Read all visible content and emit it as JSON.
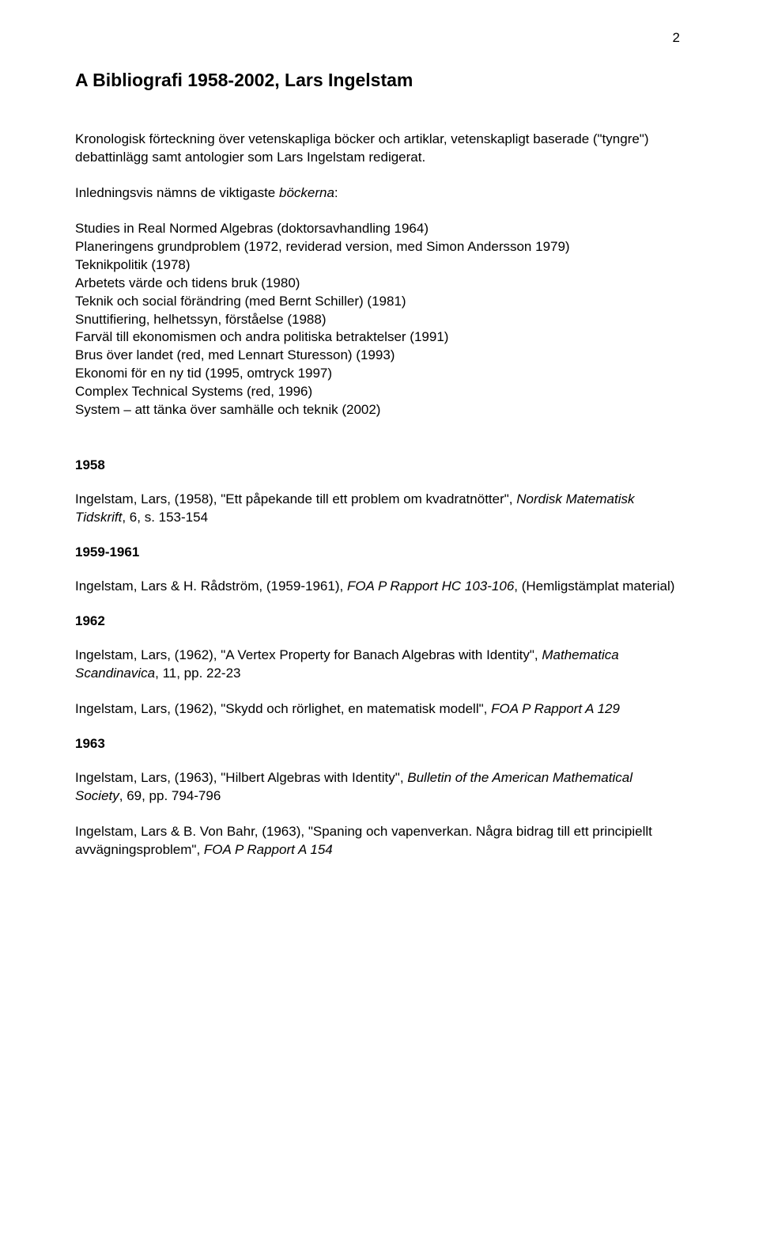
{
  "page_number": "2",
  "heading": "A Bibliografi 1958-2002, Lars Ingelstam",
  "intro_para": "Kronologisk förteckning över vetenskapliga böcker och artiklar, vetenskapligt baserade (\"tyngre\") debattinlägg samt antologier som Lars Ingelstam redigerat.",
  "intro_label_pre": "Inledningsvis nämns de viktigaste ",
  "intro_label_italic": "böckerna",
  "intro_label_post": ":",
  "books": [
    "Studies in Real Normed Algebras (doktorsavhandling 1964)",
    "Planeringens grundproblem (1972, reviderad version, med Simon Andersson 1979)",
    "Teknikpolitik (1978)",
    "Arbetets värde och tidens bruk (1980)",
    "Teknik och social förändring (med Bernt Schiller) (1981)",
    "Snuttifiering, helhetssyn, förståelse (1988)",
    "Farväl till ekonomismen och andra politiska betraktelser (1991)",
    "Brus över landet (red, med Lennart Sturesson) (1993)",
    "Ekonomi för en ny tid (1995, omtryck 1997)",
    "Complex Technical Systems (red, 1996)",
    "System – att tänka över samhälle och teknik (2002)"
  ],
  "sections": [
    {
      "year": "1958",
      "entries": [
        {
          "segments": [
            {
              "t": "Ingelstam, Lars, (1958), \"Ett påpekande till ett problem om kvadratnötter\", ",
              "i": false
            },
            {
              "t": "Nordisk Matematisk Tidskrift",
              "i": true
            },
            {
              "t": ", 6, s. 153-154",
              "i": false
            }
          ]
        }
      ]
    },
    {
      "year": "1959-1961",
      "entries": [
        {
          "segments": [
            {
              "t": "Ingelstam, Lars & H. Rådström, (1959-1961), ",
              "i": false
            },
            {
              "t": "FOA P Rapport HC 103-106",
              "i": true
            },
            {
              "t": ", (Hemligstämplat material)",
              "i": false
            }
          ]
        }
      ]
    },
    {
      "year": "1962",
      "entries": [
        {
          "segments": [
            {
              "t": "Ingelstam, Lars, (1962), \"A Vertex Property for Banach Algebras with Identity\", ",
              "i": false
            },
            {
              "t": "Mathematica Scandinavica",
              "i": true
            },
            {
              "t": ", 11, pp. 22-23",
              "i": false
            }
          ]
        },
        {
          "segments": [
            {
              "t": "Ingelstam, Lars, (1962), \"Skydd och rörlighet, en matematisk modell\", ",
              "i": false
            },
            {
              "t": "FOA P Rapport A 129",
              "i": true
            }
          ]
        }
      ]
    },
    {
      "year": "1963",
      "entries": [
        {
          "segments": [
            {
              "t": "Ingelstam, Lars, (1963), \"Hilbert Algebras with Identity\", ",
              "i": false
            },
            {
              "t": "Bulletin of the American Mathematical Society",
              "i": true
            },
            {
              "t": ", 69, pp. 794-796",
              "i": false
            }
          ]
        },
        {
          "segments": [
            {
              "t": "Ingelstam, Lars & B. Von Bahr, (1963), \"Spaning och vapenverkan. Några bidrag till ett principiellt avvägningsproblem\", ",
              "i": false
            },
            {
              "t": "FOA P Rapport A 154",
              "i": true
            }
          ]
        }
      ]
    }
  ]
}
